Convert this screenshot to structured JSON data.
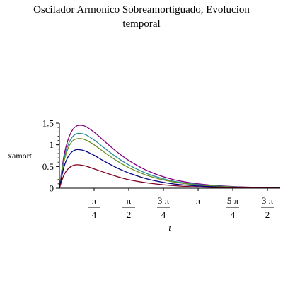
{
  "chart_data": {
    "type": "line",
    "title_line1": "Oscilador Armonico Sobreamortiguado, Evolucion",
    "title_line2": "temporal",
    "xlabel": "t",
    "ylabel": "xamort",
    "xlim": [
      0,
      5.0
    ],
    "ylim": [
      0,
      1.5
    ],
    "grid": false,
    "y_ticks": [
      {
        "value": 0,
        "label": "0"
      },
      {
        "value": 0.5,
        "label": "0.5"
      },
      {
        "value": 1,
        "label": "1"
      },
      {
        "value": 1.5,
        "label": "1.5"
      }
    ],
    "x_ticks": [
      {
        "value": 0.7854,
        "num": "π",
        "den": "4"
      },
      {
        "value": 1.5708,
        "num": "π",
        "den": "2"
      },
      {
        "value": 2.3562,
        "num": "3 π",
        "den": "4"
      },
      {
        "value": 3.1416,
        "num": "π",
        "den": ""
      },
      {
        "value": 3.927,
        "num": "5 π",
        "den": "4"
      },
      {
        "value": 4.7124,
        "num": "3 π",
        "den": "2"
      }
    ],
    "series": [
      {
        "color": "#800080",
        "x": [
          0,
          0.1,
          0.2,
          0.3,
          0.4,
          0.5,
          0.6,
          0.8,
          1.0,
          1.3,
          1.6,
          2.0,
          2.5,
          3.0,
          3.5,
          4.0,
          4.5,
          5.0
        ],
        "y": [
          0,
          0.73,
          1.13,
          1.35,
          1.44,
          1.45,
          1.42,
          1.28,
          1.1,
          0.84,
          0.62,
          0.4,
          0.22,
          0.12,
          0.065,
          0.035,
          0.018,
          0.01
        ]
      },
      {
        "color": "#2e8b99",
        "x": [
          0,
          0.1,
          0.2,
          0.3,
          0.4,
          0.5,
          0.6,
          0.8,
          1.0,
          1.3,
          1.6,
          2.0,
          2.5,
          3.0,
          3.5,
          4.0,
          4.5,
          5.0
        ],
        "y": [
          0,
          0.66,
          1.01,
          1.19,
          1.26,
          1.26,
          1.23,
          1.1,
          0.94,
          0.71,
          0.52,
          0.33,
          0.18,
          0.1,
          0.054,
          0.029,
          0.015,
          0.008
        ]
      },
      {
        "color": "#6b8e23",
        "x": [
          0,
          0.1,
          0.2,
          0.3,
          0.4,
          0.5,
          0.6,
          0.8,
          1.0,
          1.3,
          1.6,
          2.0,
          2.5,
          3.0,
          3.5,
          4.0,
          4.5,
          5.0
        ],
        "y": [
          0,
          0.6,
          0.93,
          1.09,
          1.14,
          1.14,
          1.11,
          0.99,
          0.84,
          0.63,
          0.46,
          0.29,
          0.16,
          0.085,
          0.046,
          0.025,
          0.013,
          0.007
        ]
      },
      {
        "color": "#000080",
        "x": [
          0,
          0.1,
          0.2,
          0.3,
          0.4,
          0.5,
          0.6,
          0.8,
          1.0,
          1.3,
          1.6,
          2.0,
          2.5,
          3.0,
          3.5,
          4.0,
          4.5,
          5.0
        ],
        "y": [
          0,
          0.48,
          0.73,
          0.85,
          0.89,
          0.88,
          0.85,
          0.75,
          0.63,
          0.47,
          0.34,
          0.21,
          0.11,
          0.06,
          0.032,
          0.017,
          0.009,
          0.005
        ]
      },
      {
        "color": "#800020",
        "x": [
          0,
          0.1,
          0.2,
          0.3,
          0.4,
          0.5,
          0.6,
          0.8,
          1.0,
          1.3,
          1.6,
          2.0,
          2.5,
          3.0,
          3.5,
          4.0,
          4.5,
          5.0
        ],
        "y": [
          0,
          0.3,
          0.45,
          0.52,
          0.54,
          0.53,
          0.51,
          0.44,
          0.37,
          0.27,
          0.19,
          0.12,
          0.065,
          0.034,
          0.018,
          0.009,
          0.005,
          0.003
        ]
      }
    ]
  }
}
